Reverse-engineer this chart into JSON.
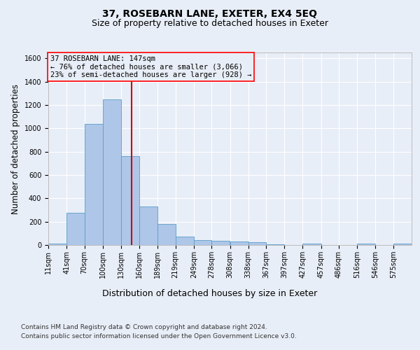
{
  "title_line1": "37, ROSEBARN LANE, EXETER, EX4 5EQ",
  "title_line2": "Size of property relative to detached houses in Exeter",
  "xlabel": "Distribution of detached houses by size in Exeter",
  "ylabel": "Number of detached properties",
  "footer_line1": "Contains HM Land Registry data © Crown copyright and database right 2024.",
  "footer_line2": "Contains public sector information licensed under the Open Government Licence v3.0.",
  "annotation_line1": "37 ROSEBARN LANE: 147sqm",
  "annotation_line2": "← 76% of detached houses are smaller (3,066)",
  "annotation_line3": "23% of semi-detached houses are larger (928) →",
  "bar_color": "#aec6e8",
  "bar_edge_color": "#5a9ec9",
  "vline_color": "#cc0000",
  "vline_x": 147,
  "bin_edges": [
    11,
    41,
    70,
    100,
    130,
    160,
    189,
    219,
    249,
    278,
    308,
    338,
    367,
    397,
    427,
    457,
    486,
    516,
    546,
    575,
    605
  ],
  "bar_heights": [
    10,
    275,
    1040,
    1245,
    760,
    330,
    180,
    75,
    45,
    38,
    28,
    22,
    8,
    0,
    12,
    0,
    0,
    12,
    0,
    12
  ],
  "ylim": [
    0,
    1650
  ],
  "yticks": [
    0,
    200,
    400,
    600,
    800,
    1000,
    1200,
    1400,
    1600
  ],
  "bg_color": "#e8eef7",
  "plot_bg_color": "#e8eef7",
  "grid_color": "#ffffff",
  "title_fontsize": 10,
  "subtitle_fontsize": 9,
  "axis_label_fontsize": 8.5,
  "tick_fontsize": 7,
  "footer_fontsize": 6.5,
  "annotation_fontsize": 7.5
}
